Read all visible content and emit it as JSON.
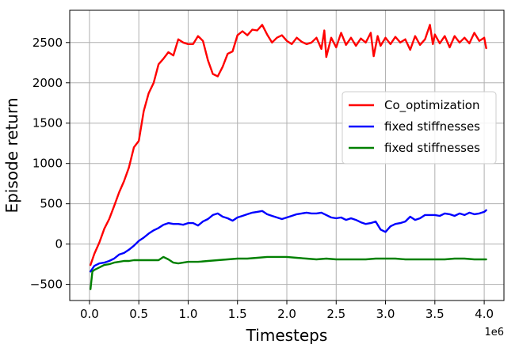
{
  "chart_data": {
    "type": "line",
    "xlabel": "Timesteps",
    "ylabel": "Episode return",
    "x_offset_label": "1e6",
    "xlim": [
      -0.2,
      4.2
    ],
    "ylim": [
      -700,
      2900
    ],
    "x_ticks": [
      0.0,
      0.5,
      1.0,
      1.5,
      2.0,
      2.5,
      3.0,
      3.5,
      4.0
    ],
    "x_tick_labels": [
      "0.0",
      "0.5",
      "1.0",
      "1.5",
      "2.0",
      "2.5",
      "3.0",
      "3.5",
      "4.0"
    ],
    "y_ticks": [
      -500,
      0,
      500,
      1000,
      1500,
      2000,
      2500
    ],
    "y_tick_labels": [
      "−500",
      "0",
      "500",
      "1000",
      "1500",
      "2000",
      "2500"
    ],
    "grid": true,
    "legend_position": "center-right",
    "series": [
      {
        "name": "Co_optimization",
        "color": "#ff0000",
        "points": [
          [
            0.01,
            -260
          ],
          [
            0.05,
            -120
          ],
          [
            0.1,
            20
          ],
          [
            0.15,
            190
          ],
          [
            0.2,
            310
          ],
          [
            0.25,
            470
          ],
          [
            0.3,
            640
          ],
          [
            0.35,
            780
          ],
          [
            0.4,
            950
          ],
          [
            0.45,
            1200
          ],
          [
            0.5,
            1280
          ],
          [
            0.55,
            1650
          ],
          [
            0.6,
            1870
          ],
          [
            0.65,
            2000
          ],
          [
            0.7,
            2230
          ],
          [
            0.75,
            2300
          ],
          [
            0.8,
            2380
          ],
          [
            0.85,
            2340
          ],
          [
            0.9,
            2540
          ],
          [
            0.95,
            2500
          ],
          [
            1.0,
            2480
          ],
          [
            1.05,
            2480
          ],
          [
            1.1,
            2580
          ],
          [
            1.15,
            2520
          ],
          [
            1.2,
            2280
          ],
          [
            1.25,
            2110
          ],
          [
            1.3,
            2080
          ],
          [
            1.35,
            2200
          ],
          [
            1.4,
            2360
          ],
          [
            1.45,
            2390
          ],
          [
            1.5,
            2590
          ],
          [
            1.55,
            2640
          ],
          [
            1.6,
            2590
          ],
          [
            1.65,
            2660
          ],
          [
            1.7,
            2650
          ],
          [
            1.75,
            2720
          ],
          [
            1.8,
            2600
          ],
          [
            1.85,
            2500
          ],
          [
            1.9,
            2560
          ],
          [
            1.95,
            2590
          ],
          [
            2.0,
            2520
          ],
          [
            2.05,
            2480
          ],
          [
            2.1,
            2560
          ],
          [
            2.15,
            2510
          ],
          [
            2.2,
            2480
          ],
          [
            2.25,
            2500
          ],
          [
            2.3,
            2560
          ],
          [
            2.35,
            2420
          ],
          [
            2.38,
            2650
          ],
          [
            2.4,
            2320
          ],
          [
            2.45,
            2560
          ],
          [
            2.5,
            2440
          ],
          [
            2.55,
            2620
          ],
          [
            2.6,
            2470
          ],
          [
            2.65,
            2560
          ],
          [
            2.7,
            2460
          ],
          [
            2.75,
            2550
          ],
          [
            2.8,
            2500
          ],
          [
            2.85,
            2620
          ],
          [
            2.88,
            2330
          ],
          [
            2.92,
            2580
          ],
          [
            2.95,
            2460
          ],
          [
            3.0,
            2560
          ],
          [
            3.05,
            2480
          ],
          [
            3.1,
            2570
          ],
          [
            3.15,
            2500
          ],
          [
            3.2,
            2540
          ],
          [
            3.25,
            2410
          ],
          [
            3.3,
            2580
          ],
          [
            3.35,
            2470
          ],
          [
            3.4,
            2540
          ],
          [
            3.45,
            2720
          ],
          [
            3.48,
            2480
          ],
          [
            3.5,
            2600
          ],
          [
            3.55,
            2490
          ],
          [
            3.6,
            2580
          ],
          [
            3.65,
            2440
          ],
          [
            3.7,
            2580
          ],
          [
            3.75,
            2500
          ],
          [
            3.8,
            2560
          ],
          [
            3.85,
            2490
          ],
          [
            3.9,
            2620
          ],
          [
            3.95,
            2520
          ],
          [
            4.0,
            2560
          ],
          [
            4.02,
            2430
          ]
        ]
      },
      {
        "name": "fixed stiffnesses",
        "color": "#0000ff",
        "points": [
          [
            0.01,
            -340
          ],
          [
            0.05,
            -270
          ],
          [
            0.1,
            -240
          ],
          [
            0.15,
            -230
          ],
          [
            0.2,
            -210
          ],
          [
            0.25,
            -180
          ],
          [
            0.3,
            -130
          ],
          [
            0.35,
            -110
          ],
          [
            0.4,
            -70
          ],
          [
            0.45,
            -20
          ],
          [
            0.5,
            40
          ],
          [
            0.55,
            80
          ],
          [
            0.6,
            130
          ],
          [
            0.65,
            170
          ],
          [
            0.7,
            200
          ],
          [
            0.75,
            240
          ],
          [
            0.8,
            260
          ],
          [
            0.85,
            250
          ],
          [
            0.9,
            250
          ],
          [
            0.95,
            240
          ],
          [
            1.0,
            260
          ],
          [
            1.05,
            260
          ],
          [
            1.1,
            230
          ],
          [
            1.15,
            280
          ],
          [
            1.2,
            310
          ],
          [
            1.25,
            360
          ],
          [
            1.3,
            380
          ],
          [
            1.35,
            340
          ],
          [
            1.4,
            320
          ],
          [
            1.45,
            290
          ],
          [
            1.5,
            330
          ],
          [
            1.55,
            350
          ],
          [
            1.6,
            370
          ],
          [
            1.65,
            390
          ],
          [
            1.7,
            400
          ],
          [
            1.75,
            410
          ],
          [
            1.8,
            370
          ],
          [
            1.85,
            350
          ],
          [
            1.9,
            330
          ],
          [
            1.95,
            310
          ],
          [
            2.0,
            330
          ],
          [
            2.05,
            350
          ],
          [
            2.1,
            370
          ],
          [
            2.15,
            380
          ],
          [
            2.2,
            390
          ],
          [
            2.25,
            380
          ],
          [
            2.3,
            380
          ],
          [
            2.35,
            390
          ],
          [
            2.4,
            360
          ],
          [
            2.45,
            330
          ],
          [
            2.5,
            320
          ],
          [
            2.55,
            330
          ],
          [
            2.6,
            300
          ],
          [
            2.65,
            320
          ],
          [
            2.7,
            300
          ],
          [
            2.75,
            270
          ],
          [
            2.8,
            250
          ],
          [
            2.85,
            260
          ],
          [
            2.9,
            280
          ],
          [
            2.95,
            180
          ],
          [
            3.0,
            150
          ],
          [
            3.05,
            220
          ],
          [
            3.1,
            250
          ],
          [
            3.15,
            260
          ],
          [
            3.2,
            280
          ],
          [
            3.25,
            340
          ],
          [
            3.3,
            300
          ],
          [
            3.35,
            320
          ],
          [
            3.4,
            360
          ],
          [
            3.45,
            360
          ],
          [
            3.5,
            360
          ],
          [
            3.55,
            350
          ],
          [
            3.6,
            380
          ],
          [
            3.65,
            370
          ],
          [
            3.7,
            350
          ],
          [
            3.75,
            380
          ],
          [
            3.8,
            360
          ],
          [
            3.85,
            390
          ],
          [
            3.9,
            370
          ],
          [
            3.95,
            380
          ],
          [
            4.0,
            400
          ],
          [
            4.02,
            420
          ]
        ]
      },
      {
        "name": "fixed stiffnesses",
        "color": "#008000",
        "points": [
          [
            0.01,
            -560
          ],
          [
            0.03,
            -340
          ],
          [
            0.05,
            -320
          ],
          [
            0.1,
            -290
          ],
          [
            0.15,
            -260
          ],
          [
            0.2,
            -250
          ],
          [
            0.25,
            -230
          ],
          [
            0.3,
            -220
          ],
          [
            0.35,
            -210
          ],
          [
            0.4,
            -210
          ],
          [
            0.45,
            -200
          ],
          [
            0.5,
            -200
          ],
          [
            0.55,
            -200
          ],
          [
            0.6,
            -200
          ],
          [
            0.65,
            -200
          ],
          [
            0.7,
            -200
          ],
          [
            0.75,
            -160
          ],
          [
            0.8,
            -190
          ],
          [
            0.85,
            -230
          ],
          [
            0.9,
            -240
          ],
          [
            0.95,
            -230
          ],
          [
            1.0,
            -220
          ],
          [
            1.1,
            -220
          ],
          [
            1.2,
            -210
          ],
          [
            1.3,
            -200
          ],
          [
            1.4,
            -190
          ],
          [
            1.5,
            -180
          ],
          [
            1.6,
            -180
          ],
          [
            1.7,
            -170
          ],
          [
            1.8,
            -160
          ],
          [
            1.9,
            -160
          ],
          [
            2.0,
            -160
          ],
          [
            2.1,
            -170
          ],
          [
            2.2,
            -180
          ],
          [
            2.3,
            -190
          ],
          [
            2.4,
            -180
          ],
          [
            2.5,
            -190
          ],
          [
            2.6,
            -190
          ],
          [
            2.7,
            -190
          ],
          [
            2.8,
            -190
          ],
          [
            2.9,
            -180
          ],
          [
            3.0,
            -180
          ],
          [
            3.1,
            -180
          ],
          [
            3.2,
            -190
          ],
          [
            3.3,
            -190
          ],
          [
            3.4,
            -190
          ],
          [
            3.5,
            -190
          ],
          [
            3.6,
            -190
          ],
          [
            3.7,
            -180
          ],
          [
            3.8,
            -180
          ],
          [
            3.9,
            -190
          ],
          [
            4.0,
            -190
          ],
          [
            4.02,
            -190
          ]
        ]
      }
    ]
  }
}
